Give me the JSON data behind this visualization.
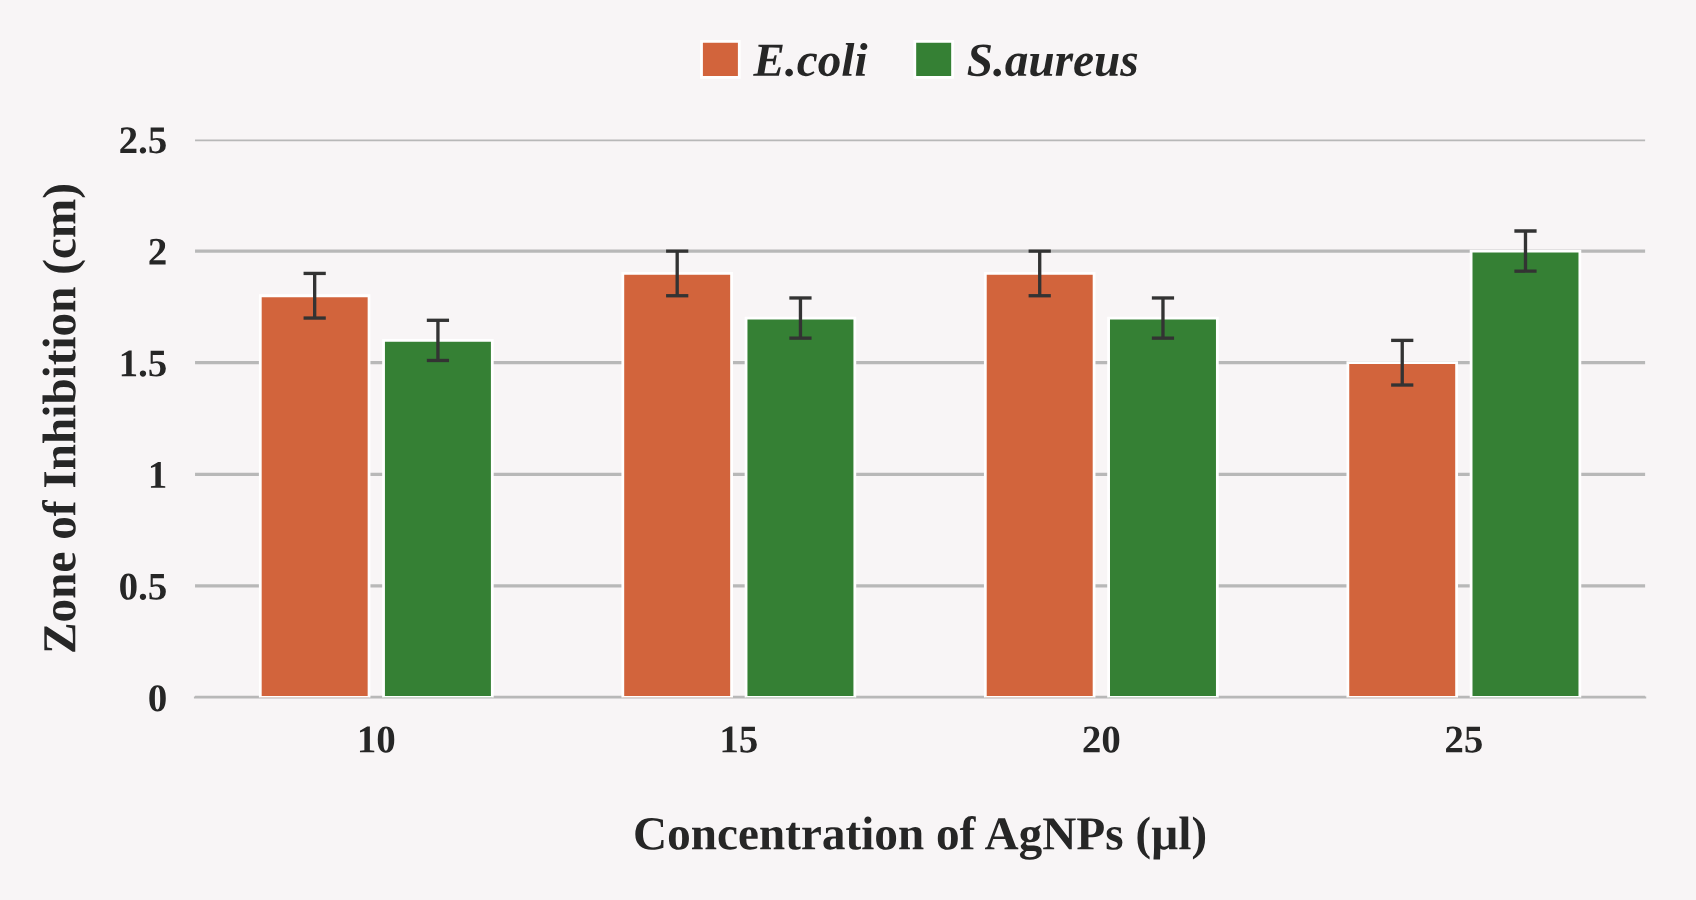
{
  "chart_data": {
    "type": "bar",
    "xlabel": "Concentration of AgNPs (µl)",
    "ylabel": "Zone of Inhibition (cm)",
    "categories": [
      "10",
      "15",
      "20",
      "25"
    ],
    "series": [
      {
        "name": "E.coli",
        "color": "#d2643c",
        "values": [
          1.8,
          1.9,
          1.9,
          1.5
        ],
        "errors": [
          0.1,
          0.1,
          0.1,
          0.1
        ]
      },
      {
        "name": "S.aureus",
        "color": "#358034",
        "values": [
          1.6,
          1.7,
          1.7,
          2.0
        ],
        "errors": [
          0.09,
          0.09,
          0.09,
          0.09
        ]
      }
    ],
    "ylim": [
      0,
      2.5
    ],
    "yticks": [
      0,
      0.5,
      1,
      1.5,
      2,
      2.5
    ],
    "grid": "y",
    "legend": "top"
  }
}
